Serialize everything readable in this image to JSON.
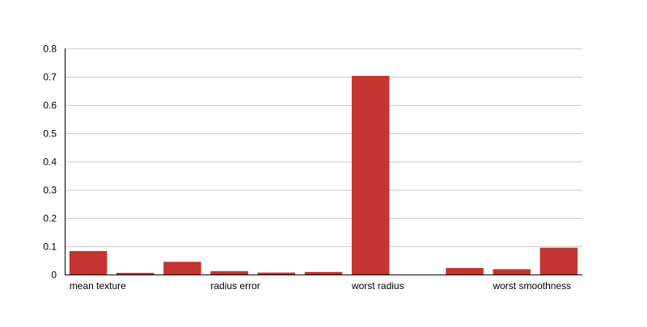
{
  "chart_data": {
    "type": "bar",
    "title": "",
    "xlabel": "",
    "ylabel": "",
    "ylim": [
      0,
      0.8
    ],
    "yticks": [
      0,
      0.1,
      0.2,
      0.3,
      0.4,
      0.5,
      0.6,
      0.7,
      0.8
    ],
    "ytick_labels": [
      "0",
      "0.1",
      "0.2",
      "0.3",
      "0.4",
      "0.5",
      "0.6",
      "0.7",
      "0.8"
    ],
    "grid": true,
    "bar_color": "#c23531",
    "categories": [
      "mean texture",
      "",
      "",
      "radius error",
      "",
      "",
      "worst radius",
      "",
      "",
      "worst smoothness",
      ""
    ],
    "values": [
      0.083,
      0.006,
      0.045,
      0.012,
      0.007,
      0.009,
      0.703,
      0.0,
      0.023,
      0.019,
      0.095
    ],
    "visible_tick_labels": [
      {
        "index": 0,
        "label": "mean texture"
      },
      {
        "index": 3,
        "label": "radius error"
      },
      {
        "index": 6,
        "label": "worst radius"
      },
      {
        "index": 9,
        "label": "worst smoothness"
      }
    ]
  }
}
